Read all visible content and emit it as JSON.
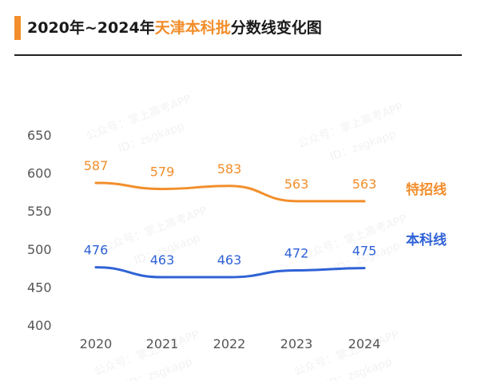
{
  "colors": {
    "accent": "#F28E2B",
    "blue": "#2F62D6",
    "title_text": "#1a1a1a"
  },
  "header": {
    "title_part1": "2020年~2024年",
    "title_highlight": "天津本科批",
    "title_part2": "分数线变化图"
  },
  "watermark": {
    "line1": "公众号：掌上高考APP",
    "line2": "ID：zsgkapp"
  },
  "chart_data": {
    "type": "line",
    "categories": [
      "2020",
      "2021",
      "2022",
      "2023",
      "2024"
    ],
    "series": [
      {
        "name": "特招线",
        "values": [
          587,
          579,
          583,
          563,
          563
        ],
        "color": "#F28E2B"
      },
      {
        "name": "本科线",
        "values": [
          476,
          463,
          463,
          472,
          475
        ],
        "color": "#2F62D6"
      }
    ],
    "yticks": [
      650,
      600,
      550,
      500,
      450,
      400
    ],
    "ylim": [
      400,
      650
    ],
    "grid": false,
    "legend": "right, inline at line ends"
  }
}
